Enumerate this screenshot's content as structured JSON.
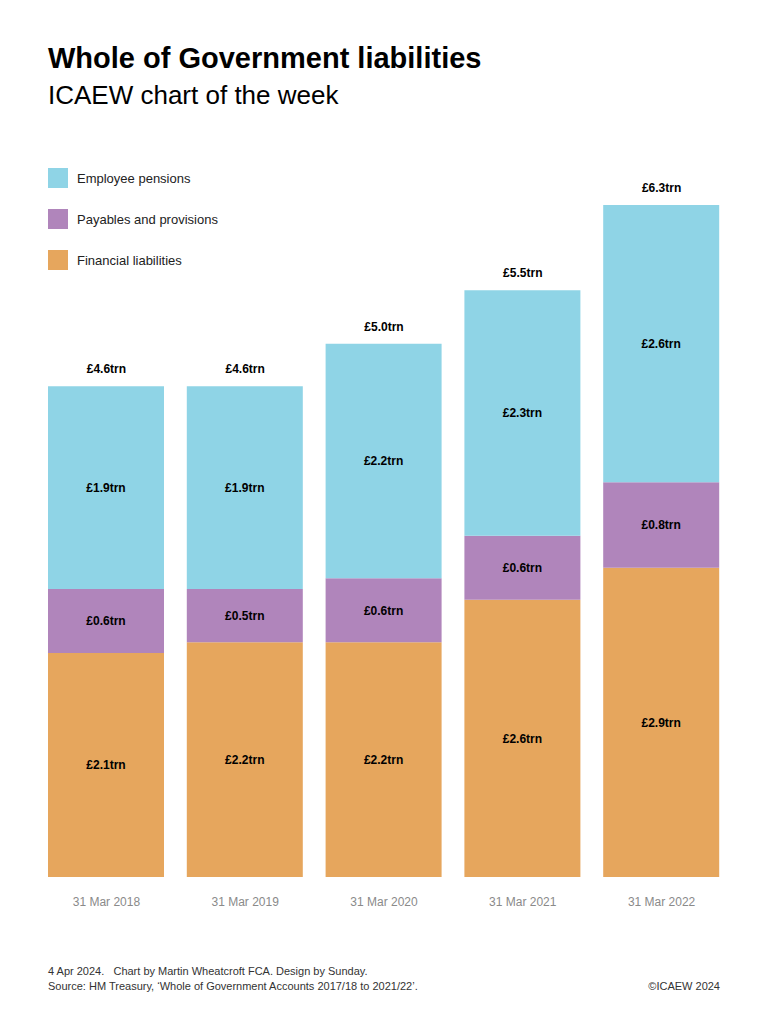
{
  "chart_data": {
    "type": "bar",
    "title": "Whole of Government liabilities",
    "subtitle": "ICAEW chart of the week",
    "categories": [
      "31 Mar 2018",
      "31 Mar 2019",
      "31 Mar 2020",
      "31 Mar 2021",
      "31 Mar 2022"
    ],
    "series": [
      {
        "name": "Employee pensions",
        "color": "#8fd4e6",
        "values": [
          1.9,
          1.9,
          2.2,
          2.3,
          2.6
        ],
        "value_labels": [
          "£1.9trn",
          "£1.9trn",
          "£2.2trn",
          "£2.3trn",
          "£2.6trn"
        ]
      },
      {
        "name": "Payables and provisions",
        "color": "#b085bb",
        "values": [
          0.6,
          0.5,
          0.6,
          0.6,
          0.8
        ],
        "value_labels": [
          "£0.6trn",
          "£0.5trn",
          "£0.6trn",
          "£0.6trn",
          "£0.8trn"
        ]
      },
      {
        "name": "Financial liabilities",
        "color": "#e6a65d",
        "values": [
          2.1,
          2.2,
          2.2,
          2.6,
          2.9
        ],
        "value_labels": [
          "£2.1trn",
          "£2.2trn",
          "£2.2trn",
          "£2.6trn",
          "£2.9trn"
        ]
      }
    ],
    "totals": {
      "values": [
        4.6,
        4.6,
        5.0,
        5.5,
        6.3
      ],
      "value_labels": [
        "£4.6trn",
        "£4.6trn",
        "£5.0trn",
        "£5.5trn",
        "£6.3trn"
      ]
    },
    "stacked": true,
    "data_labels": true,
    "tick_labels": "x",
    "grid": false,
    "legend": "top-left",
    "notes": [
      "4 Apr 2024.   Chart by Martin Wheatcroft FCA. Design by Sunday.",
      "Source: HM Treasury, ‘Whole of Government Accounts 2017/18 to 2021/22’."
    ],
    "copyright": "©ICAEW 2024"
  }
}
